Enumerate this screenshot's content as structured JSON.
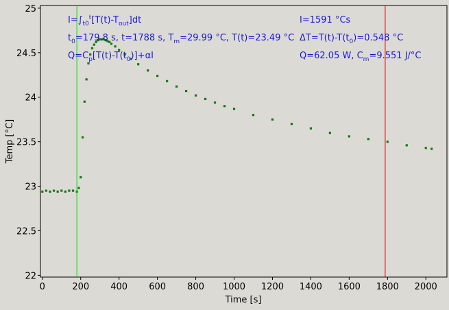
{
  "chart_data": {
    "type": "scatter",
    "xlabel": "Time [s]",
    "ylabel": "Temp [°C]",
    "xlim": [
      -10,
      2110
    ],
    "ylim": [
      21.98,
      25.03
    ],
    "x_ticks": [
      0,
      200,
      400,
      600,
      800,
      1000,
      1200,
      1400,
      1600,
      1800,
      2000
    ],
    "y_ticks": [
      22,
      22.5,
      23,
      23.5,
      24,
      24.5,
      25
    ],
    "y_tick_labels": [
      "22",
      "22.5",
      "23",
      "23.5",
      "24",
      "24.5",
      "25"
    ],
    "grid": false,
    "marker_color": "#127a12",
    "series": [
      {
        "marker": "square",
        "x": [
          0,
          20,
          40,
          60,
          80,
          100,
          120,
          140,
          160,
          180,
          190,
          200,
          210,
          220,
          230,
          240,
          250,
          260,
          270,
          280,
          290,
          300,
          310,
          320,
          330,
          340,
          350,
          360,
          380,
          400,
          430,
          460,
          500,
          550,
          600,
          650,
          700,
          750,
          800,
          850,
          900,
          950,
          1000,
          1100,
          1200,
          1300,
          1400,
          1500,
          1600,
          1700,
          1800,
          1900,
          2000,
          2030
        ],
        "y": [
          22.94,
          22.95,
          22.94,
          22.95,
          22.94,
          22.95,
          22.94,
          22.95,
          22.95,
          22.94,
          22.98,
          23.1,
          23.55,
          23.95,
          24.2,
          24.38,
          24.48,
          24.55,
          24.59,
          24.62,
          24.64,
          24.65,
          24.65,
          24.65,
          24.64,
          24.63,
          24.62,
          24.6,
          24.57,
          24.53,
          24.48,
          24.43,
          24.37,
          24.3,
          24.24,
          24.18,
          24.12,
          24.07,
          24.02,
          23.98,
          23.94,
          23.9,
          23.87,
          23.8,
          23.75,
          23.7,
          23.65,
          23.6,
          23.56,
          23.53,
          23.5,
          23.46,
          23.43,
          23.42
        ]
      }
    ],
    "vlines": [
      {
        "x": 179.8,
        "color": "#00e000"
      },
      {
        "x": 1788,
        "color": "#e00000"
      }
    ],
    "annotation_color": "#1a1ad6",
    "annotations": {
      "integral": {
        "base": "I=∫",
        "sub": "t0",
        "sup": "t",
        "tail": "[T(t)-T",
        "sub2": "out",
        "end": "]dt"
      },
      "times": {
        "t0_base": "t",
        "t0_sub": "0",
        "t0_val": "=179.8 s,   t=1788 s,   T",
        "tm_sub": "m",
        "tm_val": "=29.99 °C,  T(t)=23.49 °C"
      },
      "heat": {
        "a": "Q=C",
        "a_sub": "p",
        "b": "[T(t)-T(t",
        "b_sub": "0",
        "c": ")]+αI"
      },
      "i_value": "I=1591 °Cs",
      "delta": {
        "a": "ΔT=T(t)-T(t",
        "a_sub": "0",
        "b": ")=0.548 °C"
      },
      "power": {
        "a": "Q=62.05 W,   C",
        "a_sub": "m",
        "b": "=9.551 J/°C"
      }
    }
  }
}
